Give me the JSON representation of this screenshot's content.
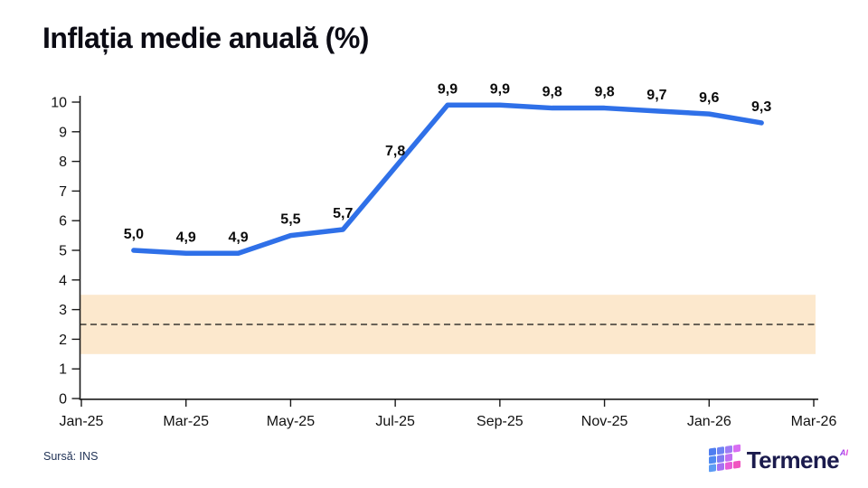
{
  "title": "Inflația medie anuală (%)",
  "source": {
    "text": "Sursă: INS"
  },
  "brand": {
    "name": "Termene",
    "superscript": "AI",
    "icon_colors": [
      "#4f7df0",
      "#6d83f3",
      "#9d7bf4",
      "#d86df2",
      "#4f8af2",
      "#7f7cf2",
      "#c06ff2",
      "",
      "#5c9cf4",
      "#a671f2",
      "#e85cd8",
      "#f055c0"
    ]
  },
  "colors": {
    "line": "#2F70E8",
    "band": "#FCE8CD",
    "target_dash": "#111111",
    "axis": "#1a1a1a",
    "tick_label": "#111111",
    "data_label": "#0b0b0b",
    "title": "#0b0b14",
    "source_text": "#1e3054",
    "brand_text": "#1b1b4d"
  },
  "chart_data": {
    "type": "line",
    "title": "Inflația medie anuală (%)",
    "x": [
      "Feb-25",
      "Mar-25",
      "Apr-25",
      "May-25",
      "Jun-25",
      "Jul-25",
      "Aug-25",
      "Sep-25",
      "Oct-25",
      "Nov-25",
      "Dec-25",
      "Jan-26",
      "Feb-26"
    ],
    "values": [
      5.0,
      4.9,
      4.9,
      5.5,
      5.7,
      7.8,
      9.9,
      9.9,
      9.8,
      9.8,
      9.7,
      9.6,
      9.3
    ],
    "value_labels": [
      "5,0",
      "4,9",
      "4,9",
      "5,5",
      "5,7",
      "7,8",
      "9,9",
      "9,9",
      "9,8",
      "9,8",
      "9,7",
      "9,6",
      "9,3"
    ],
    "x_axis_ticks": [
      "Jan-25",
      "Mar-25",
      "May-25",
      "Jul-25",
      "Sep-25",
      "Nov-25",
      "Jan-26",
      "Mar-26"
    ],
    "y_axis_ticks": [
      "0",
      "1",
      "2",
      "3",
      "4",
      "5",
      "6",
      "7",
      "8",
      "9",
      "10"
    ],
    "xlabel": "",
    "ylabel": "",
    "ylim": [
      0,
      10
    ],
    "grid": false,
    "legend": null,
    "target_band": {
      "from": 1.5,
      "to": 3.5,
      "centerline": 2.5
    }
  }
}
